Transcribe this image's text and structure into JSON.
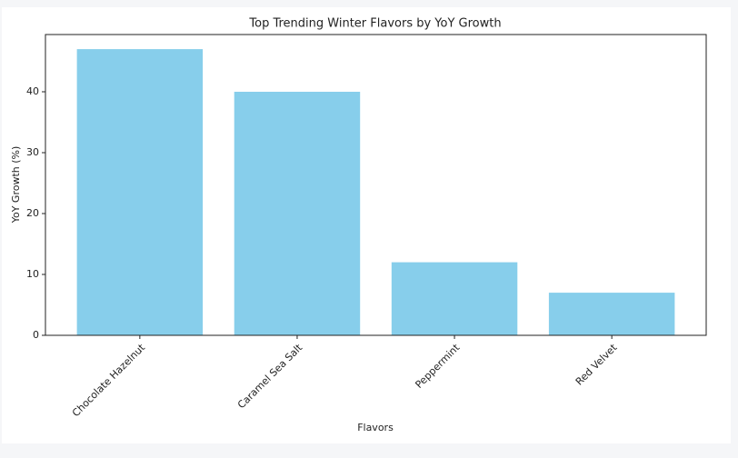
{
  "chart_data": {
    "type": "bar",
    "title": "Top Trending Winter Flavors by YoY Growth",
    "x_label": "Flavors",
    "y_label": "YoY Growth (%)",
    "categories": [
      "Chocolate Hazelnut",
      "Caramel Sea Salt",
      "Peppermint",
      "Red Velvet"
    ],
    "values": [
      47,
      40,
      12,
      7
    ],
    "color": "#87ceeb",
    "ylim": [
      0,
      49.4
    ],
    "yticks": [
      0,
      10,
      20,
      30,
      40
    ],
    "grid": false
  }
}
